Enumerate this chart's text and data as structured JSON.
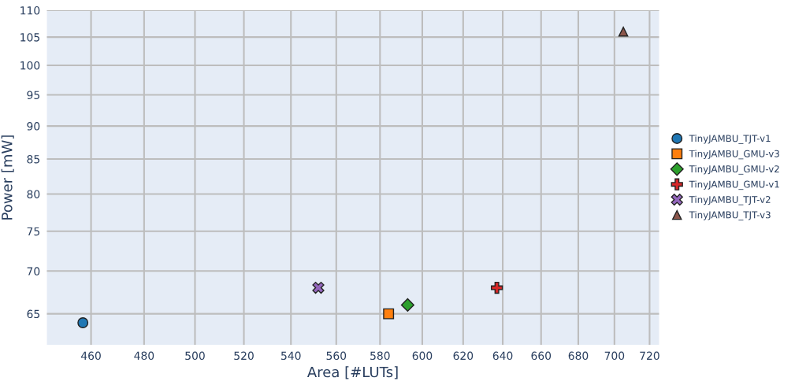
{
  "chart_data": {
    "type": "scatter",
    "xlabel": "Area [#LUTs]",
    "ylabel": "Power [mW]",
    "log": "xy",
    "grid": true,
    "legend": "right",
    "xlim": [
      444,
      725.5
    ],
    "ylim": [
      61.6,
      110
    ],
    "xticks": [
      460,
      480,
      500,
      520,
      540,
      560,
      580,
      600,
      620,
      640,
      660,
      680,
      700,
      720
    ],
    "yticks": [
      65,
      70,
      75,
      80,
      85,
      90,
      95,
      100,
      105,
      110
    ],
    "series": [
      {
        "name": "TinyJAMBU_TJT-v1",
        "color": "#1f77b4",
        "marker": "circle",
        "x": [
          457
        ],
        "values": [
          64
        ]
      },
      {
        "name": "TinyJAMBU_GMU-v3",
        "color": "#ff7f0e",
        "marker": "square",
        "x": [
          584
        ],
        "values": [
          65
        ]
      },
      {
        "name": "TinyJAMBU_GMU-v2",
        "color": "#2ca02c",
        "marker": "diamond",
        "x": [
          593
        ],
        "values": [
          66
        ]
      },
      {
        "name": "TinyJAMBU_GMU-v1",
        "color": "#d62728",
        "marker": "cross",
        "x": [
          637
        ],
        "values": [
          68
        ]
      },
      {
        "name": "TinyJAMBU_TJT-v2",
        "color": "#9467bd",
        "marker": "x",
        "x": [
          552
        ],
        "values": [
          68
        ]
      },
      {
        "name": "TinyJAMBU_TJT-v3",
        "color": "#8c564b",
        "marker": "triangle",
        "x": [
          705
        ],
        "values": [
          106
        ]
      }
    ]
  }
}
